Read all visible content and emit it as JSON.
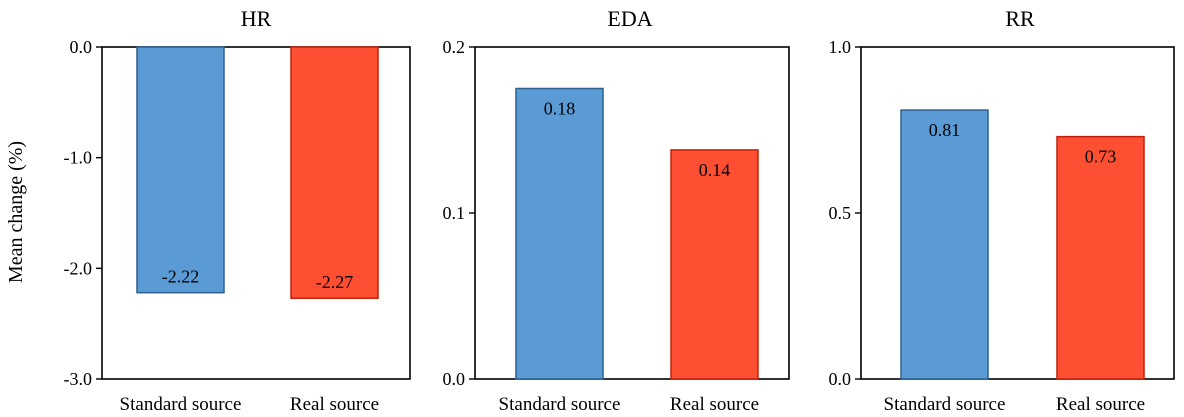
{
  "y_axis_label": "Mean change (%)",
  "colors": {
    "standard_fill": "#5b9bd5",
    "standard_stroke": "#2e5f8f",
    "real_fill": "#ff4f33",
    "real_stroke": "#c0200a"
  },
  "chart_data": [
    {
      "type": "bar",
      "title": "HR",
      "categories": [
        "Standard source",
        "Real source"
      ],
      "values": [
        -2.22,
        -2.27
      ],
      "value_labels": [
        "-2.22",
        "-2.27"
      ],
      "ylim": [
        -3.0,
        0.0
      ],
      "yticks": [
        "0.0",
        "-1.0",
        "-2.0",
        "-3.0"
      ],
      "ytick_values": [
        0.0,
        -1.0,
        -2.0,
        -3.0
      ],
      "grid": false
    },
    {
      "type": "bar",
      "title": "EDA",
      "categories": [
        "Standard source",
        "Real source"
      ],
      "values": [
        0.175,
        0.138
      ],
      "value_labels": [
        "0.18",
        "0.14"
      ],
      "ylim": [
        0.0,
        0.2
      ],
      "yticks": [
        "0.2",
        "0.1",
        "0.0"
      ],
      "ytick_values": [
        0.2,
        0.1,
        0.0
      ],
      "grid": false
    },
    {
      "type": "bar",
      "title": "RR",
      "categories": [
        "Standard source",
        "Real source"
      ],
      "values": [
        0.81,
        0.73
      ],
      "value_labels": [
        "0.81",
        "0.73"
      ],
      "ylim": [
        0.0,
        1.0
      ],
      "yticks": [
        "1.0",
        "0.5",
        "0.0"
      ],
      "ytick_values": [
        1.0,
        0.5,
        0.0
      ],
      "grid": false
    }
  ]
}
